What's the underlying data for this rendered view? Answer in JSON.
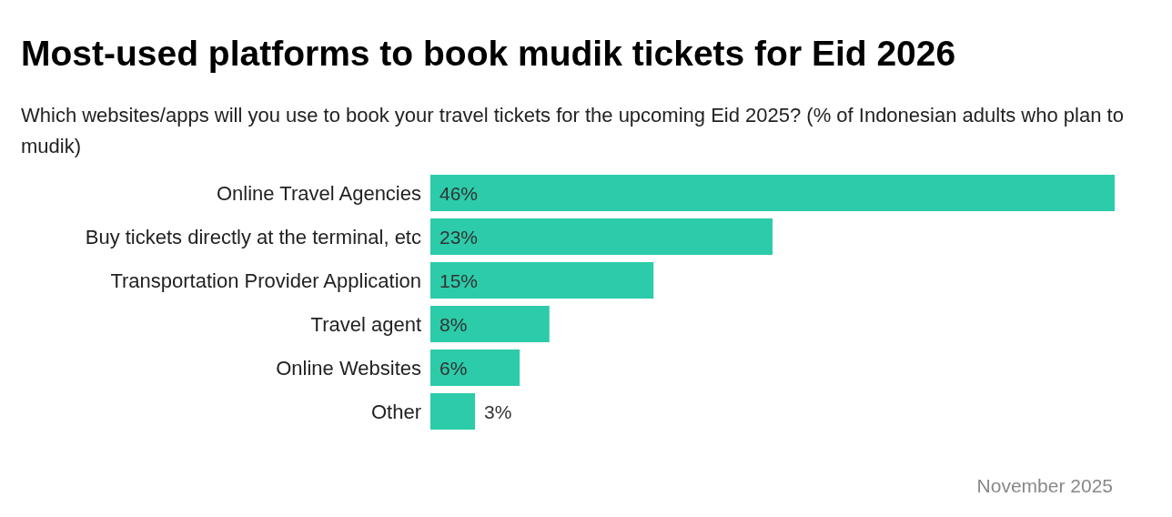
{
  "chart_data": {
    "type": "bar",
    "orientation": "horizontal",
    "title": "Most-used platforms to book mudik tickets for Eid 2026",
    "subtitle": "Which websites/apps will you use to book your travel tickets for the upcoming Eid 2025? (% of Indonesian adults who plan to mudik)",
    "categories": [
      "Online Travel Agencies",
      "Buy tickets directly at the terminal, etc",
      "Transportation Provider Application",
      "Travel agent",
      "Online Websites",
      "Other"
    ],
    "values": [
      46,
      23,
      15,
      8,
      6,
      3
    ],
    "value_labels": [
      "46%",
      "23%",
      "15%",
      "8%",
      "6%",
      "3%"
    ],
    "color": "#2ccbaa",
    "annotations": [
      "November 2025"
    ]
  }
}
